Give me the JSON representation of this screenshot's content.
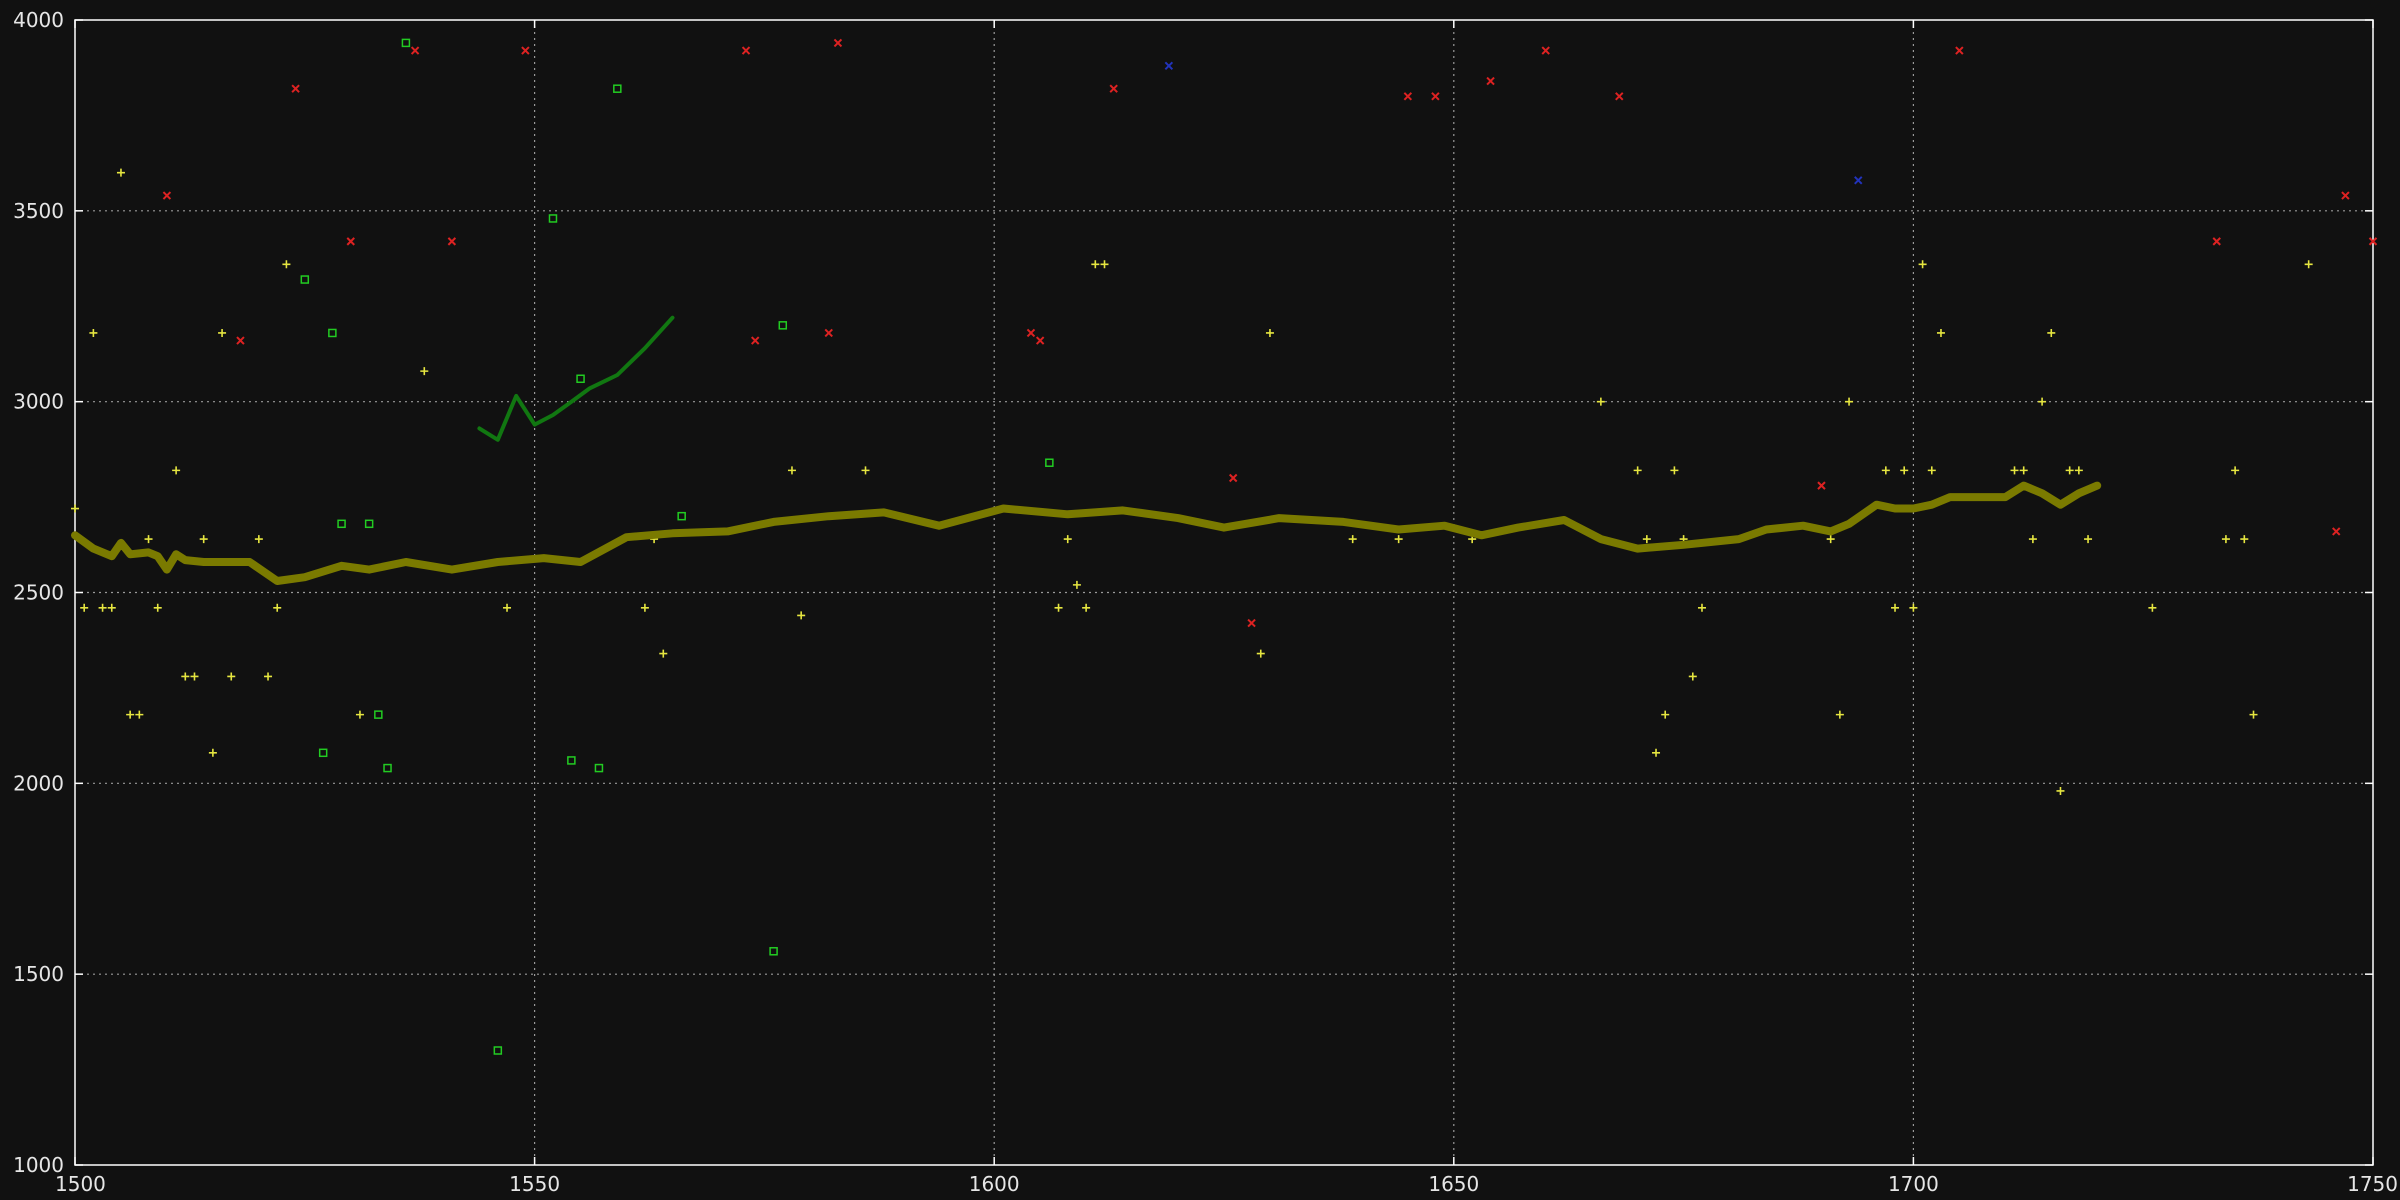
{
  "chart_data": {
    "type": "scatter",
    "title": "",
    "xlabel": "",
    "ylabel": "",
    "xlim": [
      1500,
      1750
    ],
    "ylim": [
      1000,
      4000
    ],
    "xticks": [
      1500,
      1550,
      1600,
      1650,
      1700,
      1750
    ],
    "yticks": [
      1000,
      1500,
      2000,
      2500,
      3000,
      3500,
      4000
    ],
    "xtick_labels": [
      "1500",
      "1550",
      "1600",
      "1650",
      "1700",
      "1750"
    ],
    "ytick_labels": [
      "1000",
      "1500",
      "2000",
      "2500",
      "3000",
      "3500",
      "4000"
    ],
    "grid": true,
    "legend": "none",
    "colors": {
      "background": "#111111",
      "axes": "#ffffff",
      "grid": "#9a9a9a",
      "ticks_text": "#e6e6e6",
      "yellow": "#e6e640",
      "olive": "#7a7a00",
      "green": "#22cc22",
      "dark_green": "#117711",
      "red": "#dd2222",
      "blue": "#2233bb"
    },
    "series": [
      {
        "marker": "plus",
        "color": "#e6e640",
        "points": [
          [
            1500,
            2720
          ],
          [
            1501,
            2460
          ],
          [
            1502,
            3180
          ],
          [
            1503,
            2460
          ],
          [
            1504,
            2460
          ],
          [
            1505,
            3600
          ],
          [
            1506,
            2180
          ],
          [
            1507,
            2180
          ],
          [
            1508,
            2640
          ],
          [
            1509,
            2460
          ],
          [
            1511,
            2820
          ],
          [
            1512,
            2280
          ],
          [
            1513,
            2280
          ],
          [
            1514,
            2640
          ],
          [
            1515,
            2080
          ],
          [
            1516,
            3180
          ],
          [
            1517,
            2280
          ],
          [
            1520,
            2640
          ],
          [
            1521,
            2280
          ],
          [
            1522,
            2460
          ],
          [
            1523,
            3360
          ],
          [
            1531,
            2180
          ],
          [
            1538,
            3080
          ],
          [
            1547,
            2460
          ],
          [
            1562,
            2460
          ],
          [
            1563,
            2640
          ],
          [
            1564,
            2340
          ],
          [
            1578,
            2820
          ],
          [
            1579,
            2440
          ],
          [
            1586,
            2820
          ],
          [
            1607,
            2460
          ],
          [
            1608,
            2640
          ],
          [
            1609,
            2520
          ],
          [
            1610,
            2460
          ],
          [
            1611,
            3360
          ],
          [
            1612,
            3360
          ],
          [
            1629,
            2340
          ],
          [
            1630,
            3180
          ],
          [
            1639,
            2640
          ],
          [
            1644,
            2640
          ],
          [
            1652,
            2640
          ],
          [
            1666,
            3000
          ],
          [
            1670,
            2820
          ],
          [
            1671,
            2640
          ],
          [
            1672,
            2080
          ],
          [
            1673,
            2180
          ],
          [
            1674,
            2820
          ],
          [
            1675,
            2640
          ],
          [
            1676,
            2280
          ],
          [
            1677,
            2460
          ],
          [
            1691,
            2640
          ],
          [
            1692,
            2180
          ],
          [
            1693,
            3000
          ],
          [
            1697,
            2820
          ],
          [
            1698,
            2460
          ],
          [
            1699,
            2820
          ],
          [
            1700,
            2460
          ],
          [
            1701,
            3360
          ],
          [
            1702,
            2820
          ],
          [
            1703,
            3180
          ],
          [
            1711,
            2820
          ],
          [
            1712,
            2820
          ],
          [
            1713,
            2640
          ],
          [
            1714,
            3000
          ],
          [
            1715,
            3180
          ],
          [
            1716,
            1980
          ],
          [
            1717,
            2820
          ],
          [
            1718,
            2820
          ],
          [
            1719,
            2640
          ],
          [
            1726,
            2460
          ],
          [
            1734,
            2640
          ],
          [
            1735,
            2820
          ],
          [
            1736,
            2640
          ],
          [
            1737,
            2180
          ],
          [
            1743,
            3360
          ]
        ]
      },
      {
        "marker": "square",
        "color": "#22cc22",
        "points": [
          [
            1525,
            3320
          ],
          [
            1527,
            2080
          ],
          [
            1528,
            3180
          ],
          [
            1529,
            2680
          ],
          [
            1532,
            2680
          ],
          [
            1533,
            2180
          ],
          [
            1534,
            2040
          ],
          [
            1536,
            3940
          ],
          [
            1546,
            1300
          ],
          [
            1552,
            3480
          ],
          [
            1554,
            2060
          ],
          [
            1555,
            3060
          ],
          [
            1557,
            2040
          ],
          [
            1559,
            3820
          ],
          [
            1566,
            2700
          ],
          [
            1576,
            1560
          ],
          [
            1577,
            3200
          ],
          [
            1606,
            2840
          ]
        ]
      },
      {
        "marker": "cross",
        "color": "#dd2222",
        "points": [
          [
            1510,
            3540
          ],
          [
            1518,
            3160
          ],
          [
            1524,
            3820
          ],
          [
            1530,
            3420
          ],
          [
            1537,
            3920
          ],
          [
            1541,
            3420
          ],
          [
            1549,
            3920
          ],
          [
            1573,
            3920
          ],
          [
            1574,
            3160
          ],
          [
            1582,
            3180
          ],
          [
            1583,
            3940
          ],
          [
            1604,
            3180
          ],
          [
            1605,
            3160
          ],
          [
            1613,
            3820
          ],
          [
            1626,
            2800
          ],
          [
            1628,
            2420
          ],
          [
            1645,
            3800
          ],
          [
            1648,
            3800
          ],
          [
            1654,
            3840
          ],
          [
            1660,
            3920
          ],
          [
            1668,
            3800
          ],
          [
            1690,
            2780
          ],
          [
            1705,
            3920
          ],
          [
            1733,
            3420
          ],
          [
            1746,
            2660
          ],
          [
            1747,
            3540
          ],
          [
            1750,
            3420
          ]
        ]
      },
      {
        "marker": "cross",
        "color": "#2233bb",
        "points": [
          [
            1619,
            3880
          ],
          [
            1694,
            3580
          ]
        ]
      },
      {
        "marker": "line",
        "color": "#7a7a00",
        "width": 8,
        "points": [
          [
            1500,
            2650
          ],
          [
            1502,
            2615
          ],
          [
            1504,
            2595
          ],
          [
            1505,
            2630
          ],
          [
            1506,
            2600
          ],
          [
            1508,
            2605
          ],
          [
            1509,
            2595
          ],
          [
            1510,
            2560
          ],
          [
            1511,
            2600
          ],
          [
            1512,
            2585
          ],
          [
            1514,
            2580
          ],
          [
            1516,
            2580
          ],
          [
            1519,
            2580
          ],
          [
            1522,
            2530
          ],
          [
            1525,
            2540
          ],
          [
            1529,
            2570
          ],
          [
            1532,
            2560
          ],
          [
            1536,
            2580
          ],
          [
            1541,
            2560
          ],
          [
            1546,
            2580
          ],
          [
            1551,
            2590
          ],
          [
            1555,
            2580
          ],
          [
            1560,
            2645
          ],
          [
            1565,
            2655
          ],
          [
            1571,
            2660
          ],
          [
            1576,
            2685
          ],
          [
            1582,
            2700
          ],
          [
            1588,
            2710
          ],
          [
            1594,
            2675
          ],
          [
            1601,
            2720
          ],
          [
            1608,
            2705
          ],
          [
            1614,
            2715
          ],
          [
            1620,
            2695
          ],
          [
            1625,
            2670
          ],
          [
            1631,
            2695
          ],
          [
            1638,
            2685
          ],
          [
            1644,
            2665
          ],
          [
            1649,
            2675
          ],
          [
            1653,
            2650
          ],
          [
            1657,
            2670
          ],
          [
            1662,
            2690
          ],
          [
            1666,
            2640
          ],
          [
            1670,
            2615
          ],
          [
            1675,
            2625
          ],
          [
            1681,
            2640
          ],
          [
            1684,
            2665
          ],
          [
            1688,
            2675
          ],
          [
            1691,
            2660
          ],
          [
            1693,
            2680
          ],
          [
            1696,
            2730
          ],
          [
            1698,
            2720
          ],
          [
            1700,
            2720
          ],
          [
            1702,
            2730
          ],
          [
            1704,
            2750
          ],
          [
            1710,
            2750
          ],
          [
            1712,
            2780
          ],
          [
            1714,
            2760
          ],
          [
            1716,
            2730
          ],
          [
            1718,
            2760
          ],
          [
            1720,
            2780
          ]
        ]
      },
      {
        "marker": "line",
        "color": "#117711",
        "width": 4,
        "points": [
          [
            1544,
            2930
          ],
          [
            1546,
            2900
          ],
          [
            1548,
            3015
          ],
          [
            1550,
            2940
          ],
          [
            1552,
            2965
          ],
          [
            1554,
            3000
          ],
          [
            1556,
            3035
          ],
          [
            1559,
            3070
          ],
          [
            1562,
            3140
          ],
          [
            1565,
            3220
          ]
        ]
      }
    ]
  }
}
